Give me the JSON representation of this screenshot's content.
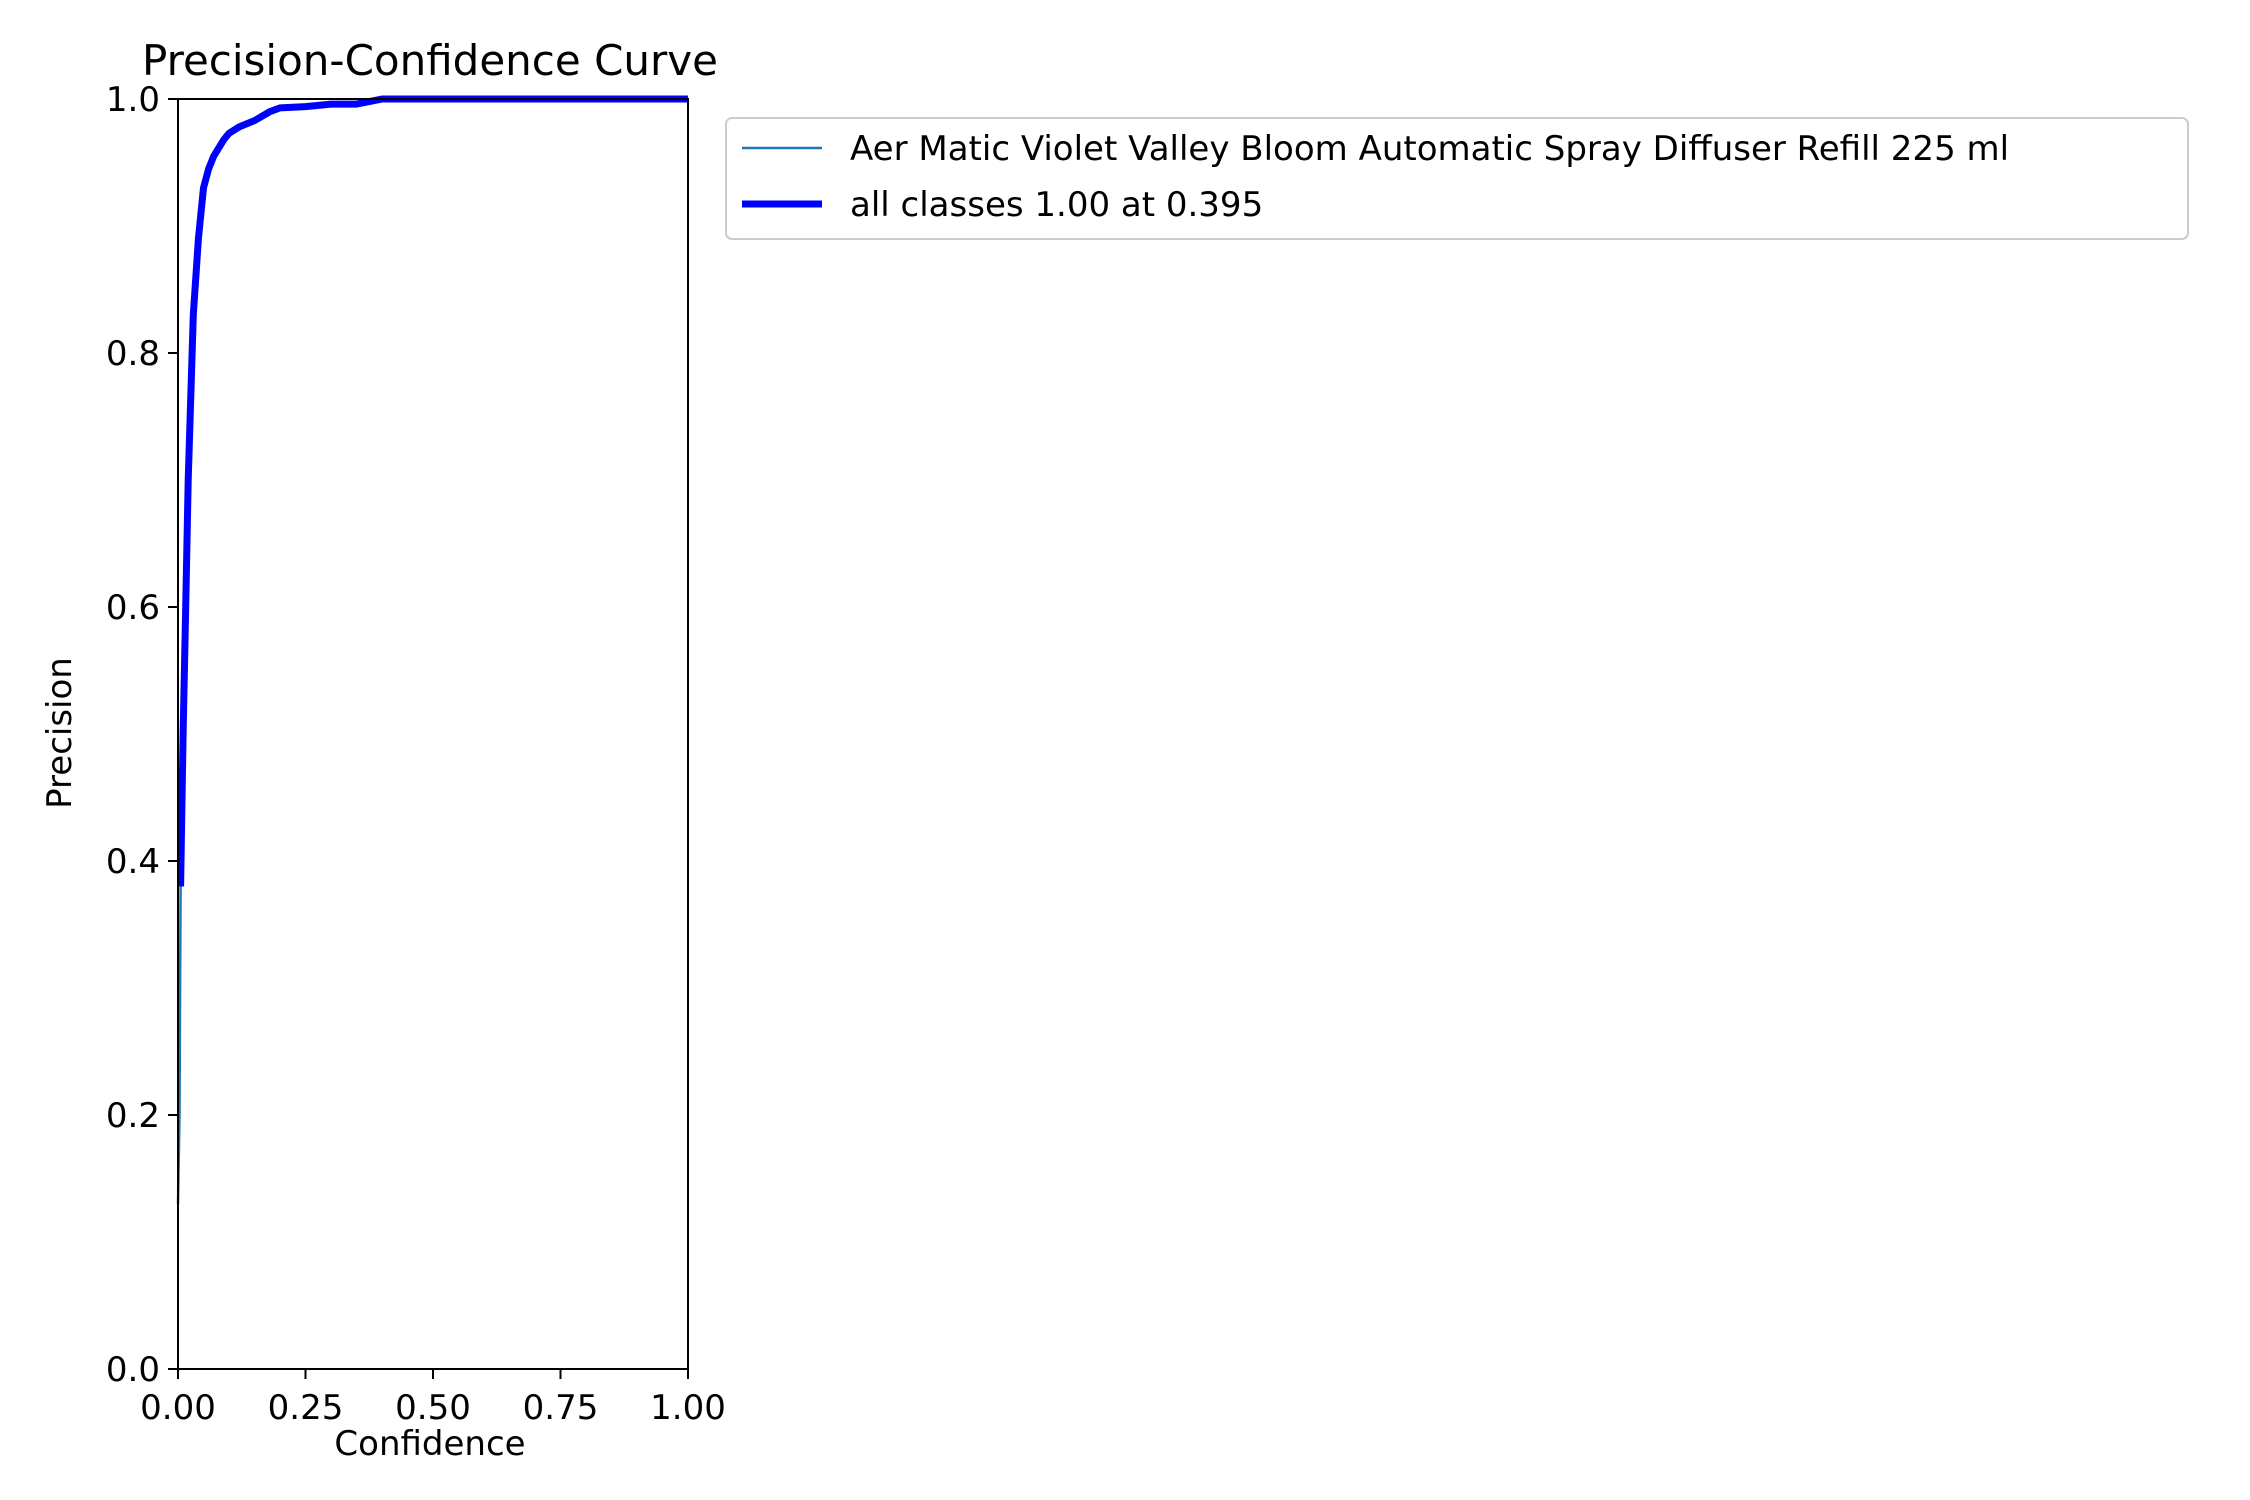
{
  "chart_data": {
    "type": "line",
    "title": "Precision-Confidence Curve",
    "xlabel": "Confidence",
    "ylabel": "Precision",
    "xlim": [
      0,
      1
    ],
    "ylim": [
      0,
      1
    ],
    "x_ticks": [
      "0.00",
      "0.25",
      "0.50",
      "0.75",
      "1.00"
    ],
    "y_ticks": [
      "0.0",
      "0.2",
      "0.4",
      "0.6",
      "0.8",
      "1.0"
    ],
    "grid": false,
    "legend_position": "outside-top-right",
    "series": [
      {
        "name": "Aer Matic Violet Valley Bloom Automatic Spray Diffuser Refill 225 ml",
        "color": "#1f77b4",
        "line_width": "thin",
        "points": [
          [
            0.0,
            0.13
          ],
          [
            0.003,
            0.2
          ],
          [
            0.005,
            0.38
          ],
          [
            0.01,
            0.5
          ],
          [
            0.015,
            0.6
          ],
          [
            0.02,
            0.7
          ],
          [
            0.03,
            0.83
          ],
          [
            0.04,
            0.89
          ],
          [
            0.05,
            0.93
          ],
          [
            0.06,
            0.945
          ],
          [
            0.07,
            0.955
          ],
          [
            0.09,
            0.968
          ],
          [
            0.1,
            0.973
          ],
          [
            0.12,
            0.978
          ],
          [
            0.15,
            0.983
          ],
          [
            0.18,
            0.99
          ],
          [
            0.2,
            0.993
          ],
          [
            0.25,
            0.994
          ],
          [
            0.3,
            0.996
          ],
          [
            0.35,
            0.996
          ],
          [
            0.4,
            1.0
          ],
          [
            0.5,
            1.0
          ],
          [
            0.75,
            1.0
          ],
          [
            1.0,
            1.0
          ]
        ]
      },
      {
        "name": "all classes 1.00 at 0.395",
        "color": "#0000ff",
        "line_width": "thick",
        "points": [
          [
            0.005,
            0.38
          ],
          [
            0.01,
            0.5
          ],
          [
            0.015,
            0.6
          ],
          [
            0.02,
            0.7
          ],
          [
            0.03,
            0.83
          ],
          [
            0.04,
            0.89
          ],
          [
            0.05,
            0.93
          ],
          [
            0.06,
            0.945
          ],
          [
            0.07,
            0.955
          ],
          [
            0.09,
            0.968
          ],
          [
            0.1,
            0.973
          ],
          [
            0.12,
            0.978
          ],
          [
            0.15,
            0.983
          ],
          [
            0.18,
            0.99
          ],
          [
            0.2,
            0.993
          ],
          [
            0.25,
            0.994
          ],
          [
            0.3,
            0.996
          ],
          [
            0.35,
            0.996
          ],
          [
            0.4,
            1.0
          ],
          [
            0.5,
            1.0
          ],
          [
            0.75,
            1.0
          ],
          [
            1.0,
            1.0
          ]
        ]
      }
    ]
  }
}
